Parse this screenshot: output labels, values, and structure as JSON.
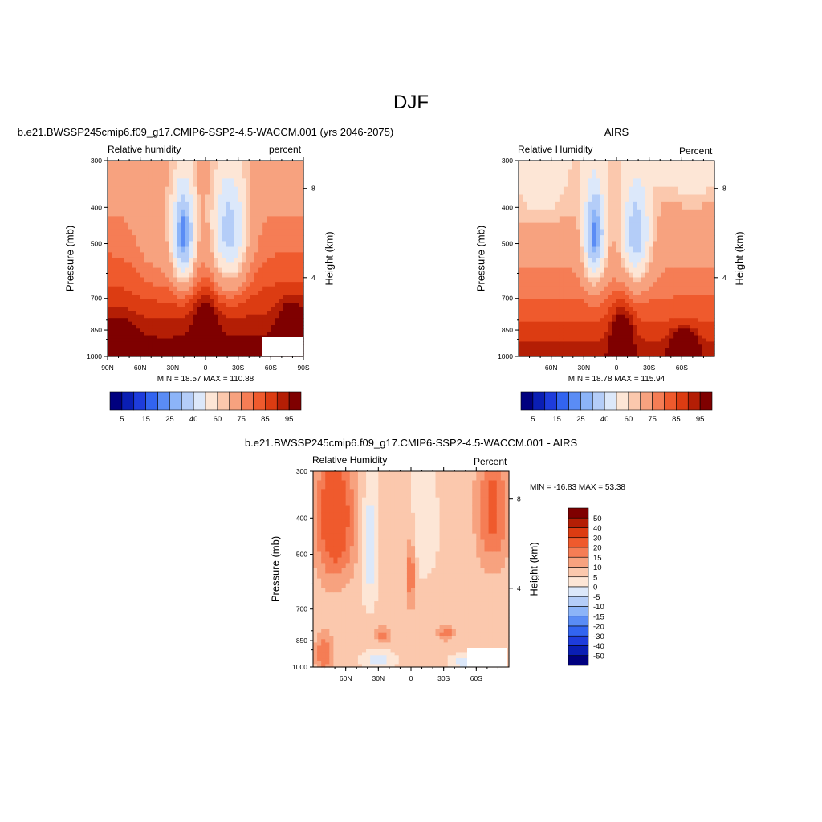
{
  "figure": {
    "title": "DJF"
  },
  "chart_data": [
    {
      "type": "heatmap",
      "panel": "model",
      "title": "b.e21.BWSSP245cmip6.f09_g17.CMIP6-SSP2-4.5-WACCM.001 (yrs 2046-2075)",
      "left_string": "Relative humidity",
      "right_string": "percent",
      "ylabel": "Pressure (mb)",
      "ylabel_right": "Height (km)",
      "y_ticks": [
        "300",
        "400",
        "500",
        "700",
        "850",
        "1000"
      ],
      "y_ticks_right": [
        "8",
        "4"
      ],
      "x_ticks": [
        "90N",
        "60N",
        "30N",
        "0",
        "30S",
        "60S",
        "90S"
      ],
      "xlim": [
        90,
        -90
      ],
      "ylim": [
        1000,
        300
      ],
      "min_max": "MIN =  18.57  MAX = 110.88",
      "colorbar_labels": [
        "5",
        "15",
        "25",
        "40",
        "60",
        "75",
        "85",
        "95"
      ]
    },
    {
      "type": "heatmap",
      "panel": "obs",
      "title": "AIRS",
      "left_string": "Relative Humidity",
      "right_string": "Percent",
      "ylabel": "Pressure (mb)",
      "ylabel_right": "Height (km)",
      "y_ticks": [
        "300",
        "400",
        "500",
        "700",
        "850",
        "1000"
      ],
      "y_ticks_right": [
        "8",
        "4"
      ],
      "x_ticks": [
        "60N",
        "30N",
        "0",
        "30S",
        "60S"
      ],
      "xlim": [
        90,
        -90
      ],
      "ylim": [
        1000,
        300
      ],
      "min_max": "MIN =  18.78  MAX = 115.94",
      "colorbar_labels": [
        "5",
        "15",
        "25",
        "40",
        "60",
        "75",
        "85",
        "95"
      ]
    },
    {
      "type": "heatmap",
      "panel": "diff",
      "title": "b.e21.BWSSP245cmip6.f09_g17.CMIP6-SSP2-4.5-WACCM.001 - AIRS",
      "left_string": "Relative Humidity",
      "right_string": "Percent",
      "ylabel": "Pressure (mb)",
      "ylabel_right": "Height (km)",
      "y_ticks": [
        "300",
        "400",
        "500",
        "700",
        "850",
        "1000"
      ],
      "y_ticks_right": [
        "8",
        "4"
      ],
      "x_ticks": [
        "60N",
        "30N",
        "0",
        "30S",
        "60S"
      ],
      "xlim": [
        90,
        -90
      ],
      "ylim": [
        1000,
        300
      ],
      "min_max": "MIN = -16.83  MAX =  53.38",
      "colorbar_labels": [
        "50",
        "40",
        "30",
        "20",
        "15",
        "10",
        "5",
        "0",
        "-5",
        "-10",
        "-15",
        "-20",
        "-30",
        "-40",
        "-50"
      ]
    }
  ],
  "colors": {
    "abs_scale": [
      "#00007f",
      "#0a1eb4",
      "#1e3cdc",
      "#3264f0",
      "#5a8cf5",
      "#8cb4f8",
      "#b4cdf8",
      "#dce8fa",
      "#fde6d6",
      "#fbc8ad",
      "#f7a27f",
      "#f57d55",
      "#ef5a2d",
      "#dc3c12",
      "#b41e05",
      "#7f0000"
    ],
    "diff_scale": [
      "#00007f",
      "#0a1eb4",
      "#1e3cdc",
      "#3264f0",
      "#5a8cf5",
      "#8cb4f8",
      "#b4cdf8",
      "#dce8fa",
      "#fde6d6",
      "#fbc8ad",
      "#f7a27f",
      "#f57d55",
      "#ef5a2d",
      "#dc3c12",
      "#b41e05",
      "#7f0000"
    ]
  }
}
